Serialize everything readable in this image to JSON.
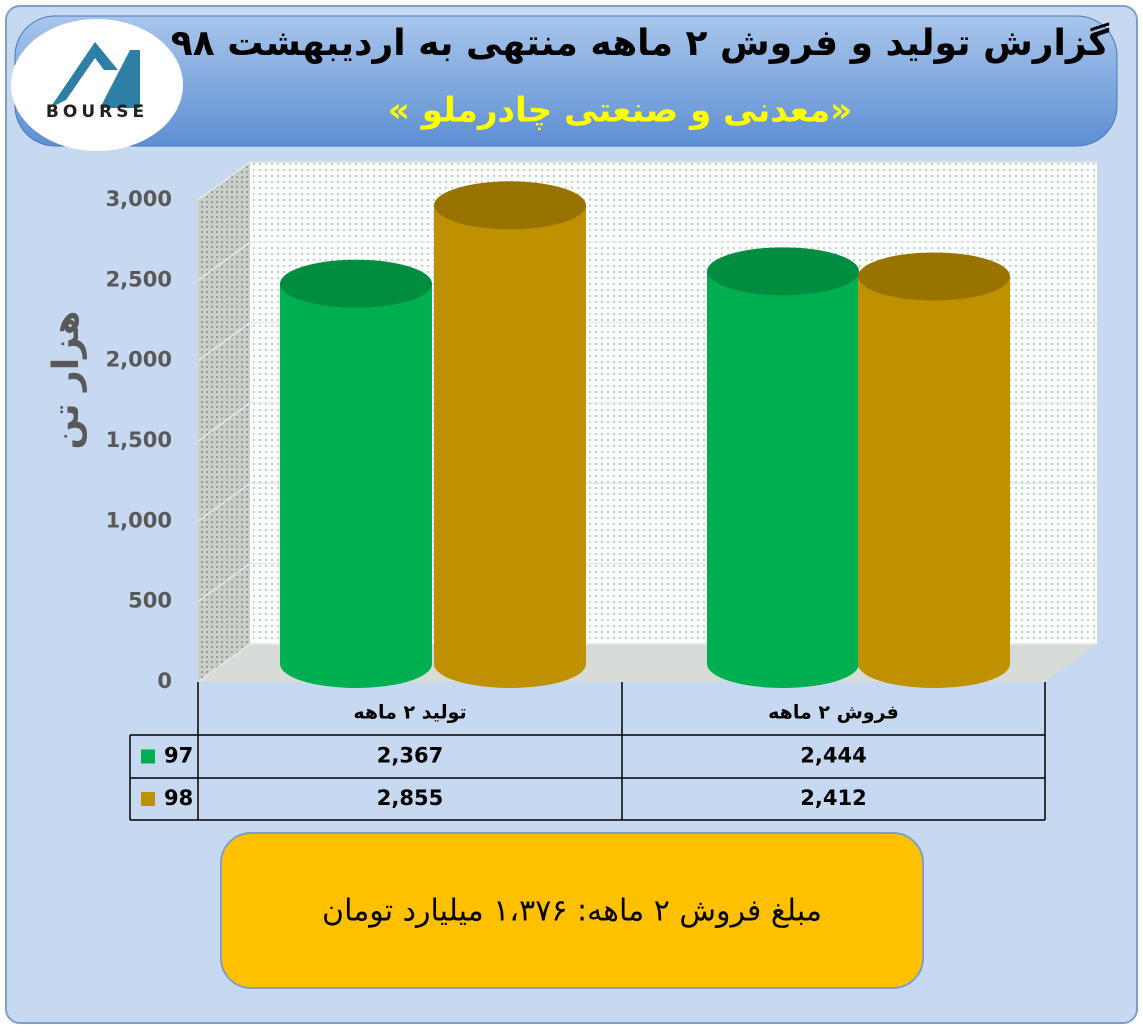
{
  "chart_data": {
    "type": "bar",
    "title": "گزارش تولید و فروش ۲ ماهه منتهی به اردیبهشت ۹۸",
    "subtitle": "«معدنی و صنعتی چادرملو »",
    "logo": "BOURSE",
    "y_label": "هزار تن",
    "categories": [
      "تولید ۲ ماهه",
      "فروش ۲ ماهه"
    ],
    "series": [
      {
        "name": "97",
        "color": "#00b050",
        "values": [
          2367,
          2444
        ],
        "value_labels": [
          "2,367",
          "2,444"
        ]
      },
      {
        "name": "98",
        "color": "#bf9000",
        "values": [
          2855,
          2412
        ],
        "value_labels": [
          "2,855",
          "2,412"
        ]
      }
    ],
    "ylim": [
      0,
      3000
    ],
    "yticks": [
      0,
      {
        "value": 500,
        "label": "500"
      },
      {
        "value": 1000,
        "label": "1,000"
      },
      {
        "value": 1500,
        "label": "1,500"
      },
      {
        "value": 2000,
        "label": "2,000"
      },
      {
        "value": 2500,
        "label": "2,500"
      },
      {
        "value": 3000,
        "label": "3,000"
      }
    ],
    "grid": true,
    "annotation": "مبلغ فروش ۲ ماهه: ۱،۳۷۶ میلیارد تومان"
  }
}
